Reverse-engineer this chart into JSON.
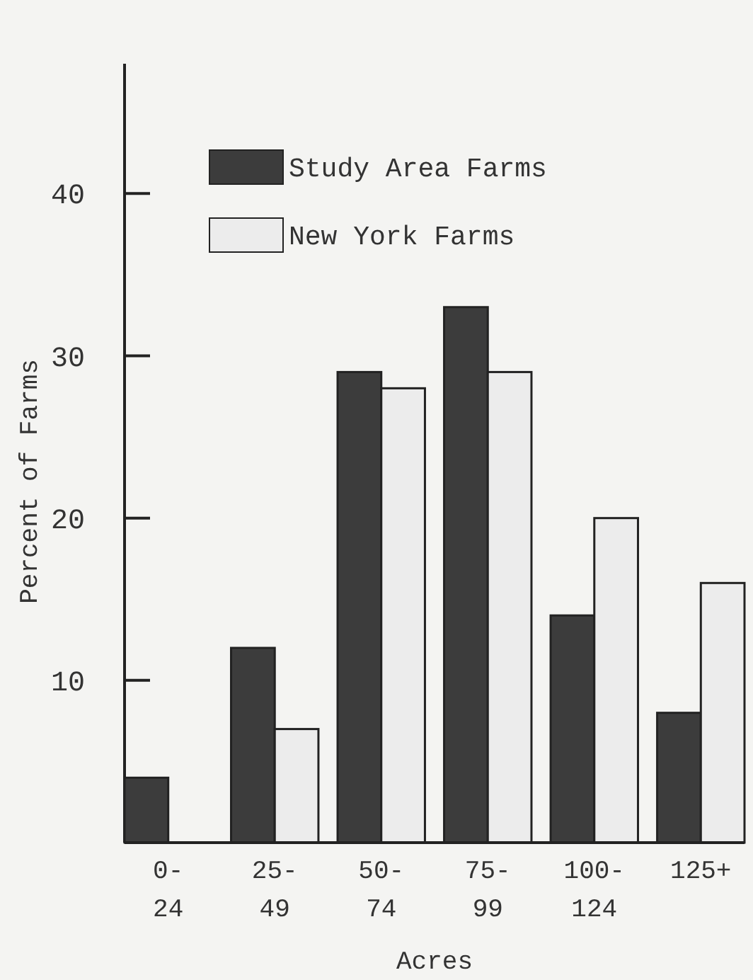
{
  "chart_data": {
    "type": "bar",
    "xlabel": "Acres",
    "ylabel": "Percent of Farms",
    "categories": [
      "0-24",
      "25-49",
      "50-74",
      "75-99",
      "100-124",
      "125+"
    ],
    "series": [
      {
        "name": "Study Area Farms",
        "color": "#3c3c3c",
        "values": [
          4,
          12,
          29,
          33,
          14,
          8
        ]
      },
      {
        "name": "New York Farms",
        "color": "#ececec",
        "values": [
          null,
          7,
          28,
          29,
          20,
          16
        ]
      }
    ],
    "ylim": [
      0,
      48
    ],
    "yticks": [
      10,
      20,
      30,
      40
    ],
    "grid": false,
    "legend": "top left"
  }
}
